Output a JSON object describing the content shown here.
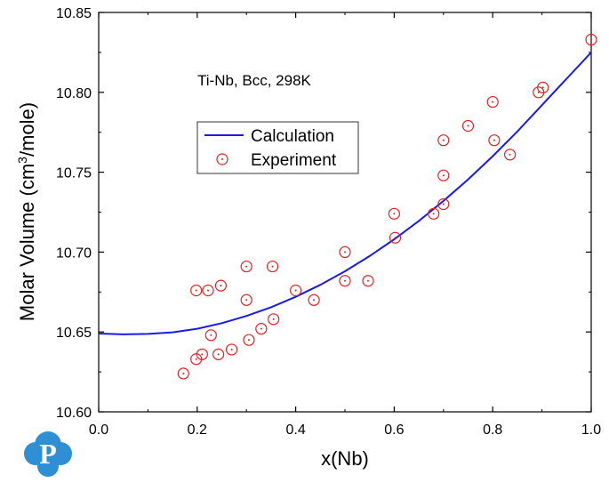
{
  "chart_data": {
    "type": "scatter",
    "annotation": "Ti-Nb, Bcc, 298K",
    "xlabel": "x(Nb)",
    "ylabel": "Molar Volume (cm",
    "ylabel_sup": "3",
    "ylabel_tail": "/mole)",
    "xlim": [
      0.0,
      1.0
    ],
    "ylim": [
      10.6,
      10.85
    ],
    "x_ticks": [
      "0.0",
      "0.2",
      "0.4",
      "0.6",
      "0.8",
      "1.0"
    ],
    "y_ticks": [
      "10.60",
      "10.65",
      "10.70",
      "10.75",
      "10.80",
      "10.85"
    ],
    "grid": false,
    "legend_position": "upper-left",
    "series": [
      {
        "name": "Calculation",
        "kind": "line",
        "color": "#1a1ae6",
        "x": [
          0.0,
          0.05,
          0.1,
          0.15,
          0.2,
          0.25,
          0.3,
          0.35,
          0.4,
          0.45,
          0.5,
          0.55,
          0.6,
          0.65,
          0.7,
          0.75,
          0.8,
          0.85,
          0.9,
          0.95,
          1.0
        ],
        "y": [
          10.649,
          10.6485,
          10.6488,
          10.6498,
          10.652,
          10.6555,
          10.66,
          10.6655,
          10.672,
          10.6795,
          10.688,
          10.6975,
          10.708,
          10.7195,
          10.732,
          10.7455,
          10.76,
          10.7755,
          10.792,
          10.8085,
          10.825
        ]
      },
      {
        "name": "Experiment",
        "kind": "scatter",
        "color": "#e62020",
        "points": [
          [
            0.172,
            10.624
          ],
          [
            0.198,
            10.633
          ],
          [
            0.198,
            10.676
          ],
          [
            0.21,
            10.636
          ],
          [
            0.222,
            10.676
          ],
          [
            0.228,
            10.648
          ],
          [
            0.243,
            10.636
          ],
          [
            0.248,
            10.679
          ],
          [
            0.27,
            10.639
          ],
          [
            0.3,
            10.691
          ],
          [
            0.3,
            10.67
          ],
          [
            0.305,
            10.645
          ],
          [
            0.33,
            10.652
          ],
          [
            0.353,
            10.691
          ],
          [
            0.355,
            10.658
          ],
          [
            0.4,
            10.676
          ],
          [
            0.437,
            10.67
          ],
          [
            0.5,
            10.7
          ],
          [
            0.5,
            10.682
          ],
          [
            0.547,
            10.682
          ],
          [
            0.6,
            10.724
          ],
          [
            0.602,
            10.709
          ],
          [
            0.68,
            10.724
          ],
          [
            0.7,
            10.77
          ],
          [
            0.7,
            10.748
          ],
          [
            0.7,
            10.73
          ],
          [
            0.75,
            10.779
          ],
          [
            0.8,
            10.794
          ],
          [
            0.803,
            10.77
          ],
          [
            0.835,
            10.761
          ],
          [
            0.893,
            10.8
          ],
          [
            0.902,
            10.803
          ],
          [
            1.0,
            10.833
          ]
        ]
      }
    ]
  },
  "logo": {
    "letter": "P",
    "color": "#2f8fd4"
  }
}
